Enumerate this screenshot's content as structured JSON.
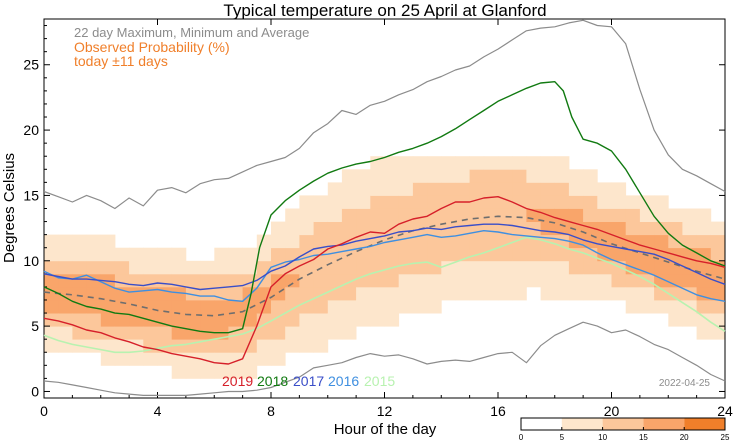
{
  "chart_data": {
    "type": "line",
    "title": "Typical temperature on 25 April at Glanford",
    "xlabel": "Hour of the day",
    "ylabel": "Degrees Celsius",
    "xlim": [
      0,
      24
    ],
    "ylim": [
      -0.5,
      28.5
    ],
    "x_ticks": [
      0,
      4,
      8,
      12,
      16,
      20,
      24
    ],
    "y_ticks": [
      0,
      5,
      10,
      15,
      20,
      25
    ],
    "legend_lines": [
      "22 day Maximum, Minimum and Average",
      "Observed Probability (%)",
      "today ±11 days"
    ],
    "date_stamp": "2022-04-25",
    "colorbar": {
      "ticks": [
        0,
        5,
        10,
        15,
        20,
        25
      ],
      "colors": [
        "#ffffff",
        "#fde6cc",
        "#fcc79b",
        "#f9a56a",
        "#f07f2a"
      ]
    },
    "colors": {
      "max_min": "#8c8c8c",
      "average": "#6e6e6e",
      "2019": "#d6202a",
      "2018": "#117a11",
      "2017": "#3a4ec8",
      "2016": "#3f8fe0",
      "2015": "#b8f2b0"
    },
    "series": [
      {
        "name": "Maximum",
        "x": [
          0,
          0.5,
          1,
          1.5,
          2,
          2.5,
          3,
          3.5,
          4,
          4.5,
          5,
          5.5,
          6,
          6.5,
          7,
          7.5,
          8,
          8.5,
          9,
          9.5,
          10,
          10.5,
          11,
          11.5,
          12,
          12.5,
          13,
          13.5,
          14,
          14.5,
          15,
          15.5,
          16,
          16.5,
          17,
          17.5,
          18,
          18.5,
          19,
          19.5,
          20,
          20.5,
          21,
          21.5,
          22,
          22.5,
          23,
          23.5,
          24
        ],
        "y": [
          15.3,
          14.9,
          14.5,
          15.0,
          14.6,
          14.0,
          14.8,
          14.2,
          15.4,
          15.6,
          15.2,
          15.9,
          16.2,
          16.3,
          16.8,
          17.3,
          17.6,
          17.9,
          18.6,
          19.8,
          20.5,
          21.5,
          21.2,
          21.9,
          22.2,
          22.7,
          23.1,
          23.7,
          24.1,
          24.6,
          24.9,
          25.6,
          26.2,
          26.9,
          27.6,
          27.8,
          27.9,
          28.2,
          28.4,
          28.0,
          27.9,
          26.6,
          23.1,
          20.0,
          18.1,
          17.0,
          16.5,
          15.9,
          15.3
        ]
      },
      {
        "name": "Minimum",
        "x": [
          0,
          0.5,
          1,
          1.5,
          2,
          2.5,
          3,
          3.5,
          4,
          4.5,
          5,
          5.5,
          6,
          6.5,
          7,
          7.5,
          8,
          8.5,
          9,
          9.5,
          10,
          10.5,
          11,
          11.5,
          12,
          12.5,
          13,
          13.5,
          14,
          14.5,
          15,
          15.5,
          16,
          16.5,
          17,
          17.5,
          18,
          18.5,
          19,
          19.5,
          20,
          20.5,
          21,
          21.5,
          22,
          22.5,
          23,
          23.5,
          24
        ],
        "y": [
          0.8,
          0.7,
          0.5,
          0.3,
          0.1,
          -0.1,
          -0.2,
          -0.3,
          -0.3,
          -0.3,
          -0.3,
          -0.2,
          -0.1,
          0.0,
          0.0,
          0.1,
          0.3,
          0.7,
          1.1,
          1.8,
          2.0,
          2.2,
          2.6,
          2.9,
          2.7,
          2.8,
          2.5,
          2.1,
          2.3,
          2.4,
          2.3,
          2.6,
          2.9,
          3.0,
          2.2,
          3.5,
          4.3,
          4.8,
          5.3,
          5.0,
          4.5,
          4.7,
          4.2,
          3.6,
          3.2,
          2.6,
          2.0,
          1.3,
          0.8
        ]
      },
      {
        "name": "Average",
        "x": [
          0,
          1,
          2,
          3,
          4,
          5,
          6,
          7,
          8,
          9,
          10,
          11,
          12,
          13,
          14,
          15,
          16,
          17,
          18,
          19,
          20,
          21,
          22,
          23,
          24
        ],
        "y": [
          7.6,
          7.4,
          7.1,
          6.7,
          6.2,
          5.9,
          5.8,
          6.1,
          7.2,
          8.6,
          9.7,
          10.7,
          11.6,
          12.3,
          12.8,
          13.2,
          13.4,
          13.3,
          12.9,
          12.2,
          11.3,
          10.6,
          9.9,
          9.2,
          8.6
        ]
      },
      {
        "name": "2019",
        "x": [
          0,
          0.5,
          1,
          1.5,
          2,
          2.5,
          3,
          3.5,
          4,
          4.5,
          5,
          5.5,
          6,
          6.5,
          7,
          7.5,
          8,
          8.5,
          9,
          9.5,
          10,
          10.5,
          11,
          11.5,
          12,
          12.5,
          13,
          13.5,
          14,
          14.5,
          15,
          15.5,
          16,
          16.5,
          17,
          17.5,
          18,
          18.5,
          19,
          19.5,
          20,
          20.5,
          21,
          21.5,
          22,
          22.5,
          23,
          23.5,
          24
        ],
        "y": [
          5.6,
          5.4,
          5.1,
          4.7,
          4.5,
          4.1,
          3.8,
          3.4,
          3.2,
          2.9,
          2.7,
          2.5,
          2.2,
          2.1,
          2.5,
          5.0,
          8.0,
          9.0,
          9.6,
          10.1,
          10.9,
          11.3,
          11.8,
          12.2,
          12.1,
          12.8,
          13.2,
          13.4,
          14.0,
          14.5,
          14.5,
          14.8,
          14.9,
          14.5,
          14.0,
          13.7,
          13.3,
          13.0,
          12.7,
          12.4,
          12.0,
          11.6,
          11.2,
          10.9,
          10.6,
          10.3,
          10.0,
          9.8,
          9.5
        ]
      },
      {
        "name": "2018",
        "x": [
          0,
          0.5,
          1,
          1.5,
          2,
          2.5,
          3,
          3.5,
          4,
          4.5,
          5,
          5.5,
          6,
          6.5,
          7,
          7.3,
          7.6,
          8,
          8.5,
          9,
          9.5,
          10,
          10.5,
          11,
          11.5,
          12,
          12.5,
          13,
          13.5,
          14,
          14.5,
          15,
          15.5,
          16,
          16.5,
          17,
          17.5,
          18,
          18.3,
          18.6,
          19,
          19.5,
          20,
          20.5,
          21,
          21.5,
          22,
          22.5,
          23,
          23.5,
          24
        ],
        "y": [
          8.0,
          7.5,
          6.9,
          6.5,
          6.3,
          6.0,
          5.9,
          5.6,
          5.3,
          5.0,
          4.8,
          4.6,
          4.5,
          4.5,
          4.8,
          7.5,
          11.0,
          13.5,
          14.6,
          15.4,
          16.1,
          16.7,
          17.1,
          17.4,
          17.6,
          17.9,
          18.3,
          18.6,
          19.0,
          19.5,
          20.1,
          20.8,
          21.5,
          22.2,
          22.7,
          23.2,
          23.6,
          23.7,
          23.0,
          21.0,
          19.3,
          19.0,
          18.4,
          17.0,
          15.2,
          13.4,
          12.1,
          11.2,
          10.6,
          10.0,
          9.6
        ]
      },
      {
        "name": "2017",
        "x": [
          0,
          0.5,
          1,
          1.5,
          2,
          2.5,
          3,
          3.5,
          4,
          4.5,
          5,
          5.5,
          6,
          6.5,
          7,
          7.5,
          8,
          8.5,
          9,
          9.5,
          10,
          10.5,
          11,
          11.5,
          12,
          12.5,
          13,
          13.5,
          14,
          14.5,
          15,
          15.5,
          16,
          16.5,
          17,
          17.5,
          18,
          18.5,
          19,
          19.5,
          20,
          20.5,
          21,
          21.5,
          22,
          22.5,
          23,
          23.5,
          24
        ],
        "y": [
          9.0,
          8.8,
          8.6,
          8.6,
          8.5,
          8.4,
          8.2,
          8.1,
          8.3,
          8.2,
          8.0,
          7.8,
          7.9,
          8.0,
          8.1,
          8.5,
          9.2,
          9.6,
          10.3,
          10.9,
          11.1,
          11.2,
          11.5,
          11.7,
          11.9,
          12.2,
          12.3,
          12.5,
          12.4,
          12.6,
          12.7,
          12.8,
          12.8,
          12.7,
          12.5,
          12.3,
          12.2,
          12.0,
          11.6,
          11.3,
          11.1,
          10.9,
          10.7,
          10.5,
          10.1,
          9.6,
          9.1,
          8.6,
          8.2
        ]
      },
      {
        "name": "2016",
        "x": [
          0,
          0.5,
          1,
          1.5,
          2,
          2.5,
          3,
          3.5,
          4,
          4.5,
          5,
          5.5,
          6,
          6.5,
          7,
          7.5,
          8,
          8.5,
          9,
          9.5,
          10,
          10.5,
          11,
          11.5,
          12,
          12.5,
          13,
          13.5,
          14,
          14.5,
          15,
          15.5,
          16,
          16.5,
          17,
          17.5,
          18,
          18.5,
          19,
          19.5,
          20,
          20.5,
          21,
          21.5,
          22,
          22.5,
          23,
          23.5,
          24
        ],
        "y": [
          9.2,
          8.7,
          8.6,
          8.9,
          8.4,
          7.9,
          7.6,
          7.7,
          7.8,
          7.6,
          7.5,
          7.3,
          7.3,
          7.0,
          6.9,
          7.9,
          9.5,
          9.9,
          10.1,
          10.4,
          10.5,
          10.7,
          10.9,
          11.1,
          11.4,
          11.6,
          11.8,
          12.0,
          11.8,
          11.9,
          12.1,
          12.3,
          12.2,
          12.0,
          11.9,
          11.8,
          11.7,
          11.5,
          11.2,
          10.6,
          10.1,
          9.7,
          9.3,
          8.9,
          8.4,
          7.9,
          7.4,
          7.1,
          6.9
        ]
      },
      {
        "name": "2015",
        "x": [
          0,
          0.5,
          1,
          1.5,
          2,
          2.5,
          3,
          3.5,
          4,
          4.5,
          5,
          5.5,
          6,
          6.5,
          7,
          7.5,
          8,
          8.5,
          9,
          9.5,
          10,
          10.5,
          11,
          11.5,
          12,
          12.5,
          13,
          13.5,
          14,
          14.5,
          15,
          15.5,
          16,
          16.5,
          17,
          17.5,
          18,
          18.5,
          19,
          19.5,
          20,
          20.5,
          21,
          21.5,
          22,
          22.5,
          23,
          23.5,
          24
        ],
        "y": [
          4.3,
          3.9,
          3.6,
          3.4,
          3.2,
          3.0,
          3.0,
          3.1,
          3.3,
          3.5,
          3.6,
          3.8,
          4.0,
          4.2,
          4.4,
          4.8,
          5.4,
          6.0,
          6.6,
          7.1,
          7.6,
          8.1,
          8.6,
          9.0,
          9.3,
          9.6,
          9.8,
          9.9,
          9.5,
          9.9,
          10.3,
          10.6,
          11.0,
          11.4,
          11.8,
          11.6,
          11.3,
          10.9,
          10.6,
          10.2,
          9.8,
          9.3,
          8.8,
          8.2,
          7.5,
          6.8,
          6.1,
          5.3,
          4.6
        ]
      }
    ]
  }
}
